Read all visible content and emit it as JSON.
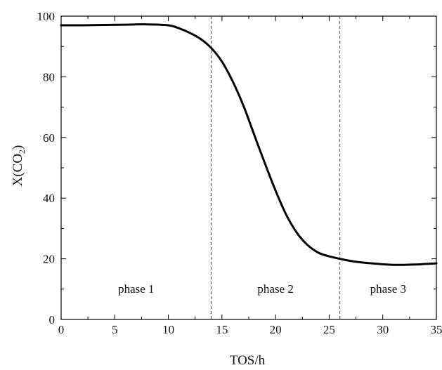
{
  "chart_data": {
    "type": "line",
    "title": "",
    "xlabel": "TOS/h",
    "ylabel_main": "X(CO",
    "ylabel_sub": "2",
    "ylabel_close": ")",
    "xlim": [
      0,
      35
    ],
    "ylim": [
      0,
      100
    ],
    "xticks": [
      0,
      5,
      10,
      15,
      20,
      25,
      30,
      35
    ],
    "yticks": [
      0,
      20,
      40,
      60,
      80,
      100
    ],
    "grid": false,
    "series": [
      {
        "color": "#000000",
        "x": [
          0,
          2,
          4,
          6,
          8,
          10,
          11,
          12,
          13,
          14,
          15,
          16,
          17,
          18,
          19,
          20,
          21,
          22,
          23,
          24,
          25,
          26,
          27,
          28,
          29,
          30,
          31,
          32,
          33,
          34,
          35
        ],
        "y": [
          97.0,
          97.0,
          97.1,
          97.2,
          97.3,
          97.0,
          96.0,
          94.5,
          92.5,
          89.5,
          85.0,
          78.5,
          70.5,
          61.0,
          51.5,
          42.5,
          34.5,
          28.5,
          24.5,
          22.0,
          20.8,
          20.0,
          19.3,
          18.8,
          18.5,
          18.2,
          18.0,
          18.0,
          18.1,
          18.3,
          18.5
        ]
      }
    ],
    "dividers": [
      14,
      26
    ],
    "phases": [
      {
        "label": "phase 1",
        "x": 7
      },
      {
        "label": "phase 2",
        "x": 20
      },
      {
        "label": "phase 3",
        "x": 30.5
      }
    ],
    "phase_label_y": 10
  }
}
